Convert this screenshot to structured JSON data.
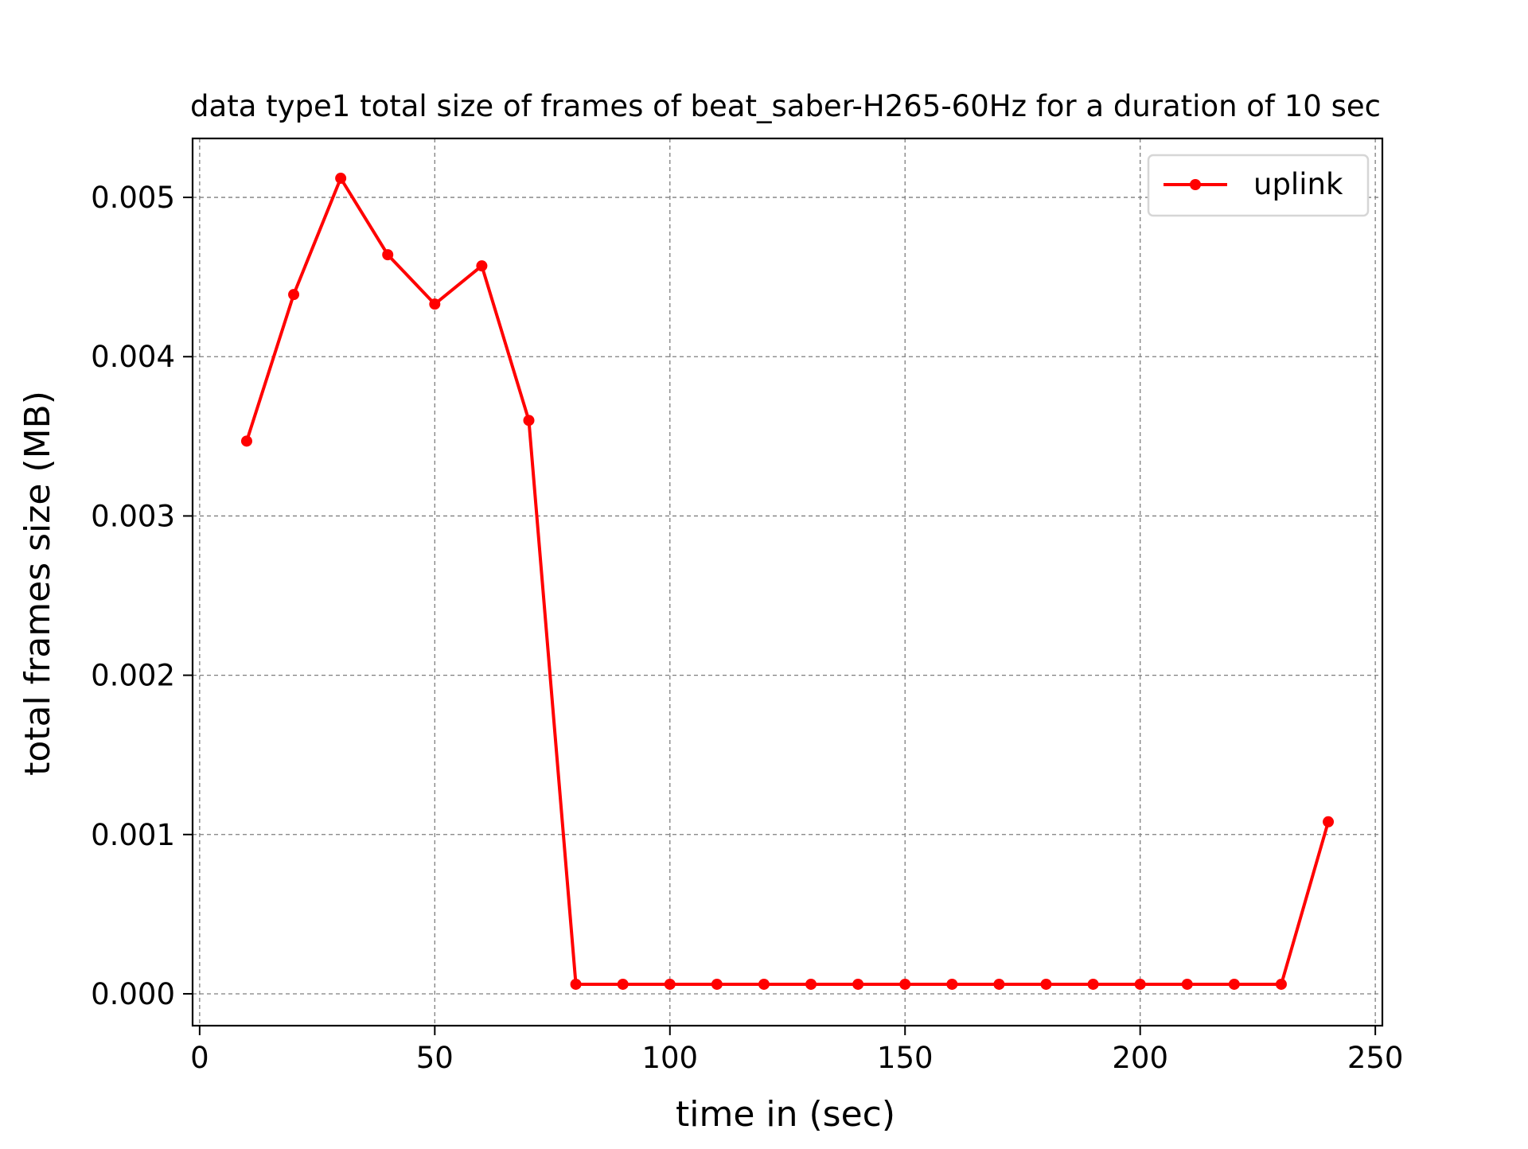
{
  "chart_data": {
    "type": "line",
    "title": "data type1 total size of frames of beat_saber-H265-60Hz for a duration of 10 sec",
    "xlabel": "time in (sec)",
    "ylabel": "total frames size (MB)",
    "xlim": [
      -1.5,
      251.5
    ],
    "ylim": [
      -0.0002,
      0.00537
    ],
    "xticks": [
      0,
      50,
      100,
      150,
      200,
      250
    ],
    "xtick_labels": [
      "0",
      "50",
      "100",
      "150",
      "200",
      "250"
    ],
    "yticks": [
      0.0,
      0.001,
      0.002,
      0.003,
      0.004,
      0.005
    ],
    "ytick_labels": [
      "0.000",
      "0.001",
      "0.002",
      "0.003",
      "0.004",
      "0.005"
    ],
    "grid": true,
    "legend_position": "upper-right",
    "series": [
      {
        "name": "uplink",
        "color": "#ff0000",
        "marker": "dot",
        "x": [
          10,
          20,
          30,
          40,
          50,
          60,
          70,
          80,
          90,
          100,
          110,
          120,
          130,
          140,
          150,
          160,
          170,
          180,
          190,
          200,
          210,
          220,
          230,
          240
        ],
        "y": [
          0.00347,
          0.00439,
          0.00512,
          0.00464,
          0.00433,
          0.00457,
          0.0036,
          6e-05,
          6e-05,
          6e-05,
          6e-05,
          6e-05,
          6e-05,
          6e-05,
          6e-05,
          6e-05,
          6e-05,
          6e-05,
          6e-05,
          6e-05,
          6e-05,
          6e-05,
          6e-05,
          0.00108
        ]
      }
    ]
  }
}
